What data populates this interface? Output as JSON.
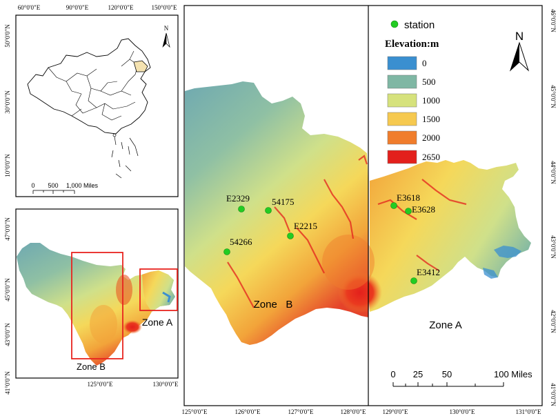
{
  "colors": {
    "elev_0": "#3a8fd0",
    "elev_500": "#7fb7a4",
    "elev_1000": "#d6e27c",
    "elev_1500": "#f6c94f",
    "elev_2000": "#f07d2c",
    "elev_2650": "#e3201c",
    "station": "#22cc22",
    "zone_box": "#e8231e",
    "china_highlight": "#f4e2b0"
  },
  "inset_china": {
    "top_ticks": [
      "60°0'0\"E",
      "90°0'0\"E",
      "120°0'0\"E",
      "150°0'0\"E"
    ],
    "left_ticks": [
      "50°0'0\"N",
      "30°0'0\"N",
      "10°0'0\"N"
    ],
    "north_letter": "N",
    "scale_labels": [
      "0",
      "500",
      "1,000 Miles"
    ]
  },
  "inset_region": {
    "left_ticks": [
      "47°0'0\"N",
      "45°0'0\"N",
      "43°0'0\"N",
      "41°0'0\"N"
    ],
    "bottom_ticks": [
      "125°0'0\"E",
      "130°0'0\"E"
    ],
    "zone_a_label": "Zone A",
    "zone_b_label": "Zone B"
  },
  "main_map": {
    "bottom_ticks": [
      "125°0'0\"E",
      "126°0'0\"E",
      "127°0'0\"E",
      "128°0'0\"E",
      "129°0'0\"E",
      "130°0'0\"E",
      "131°0'0\"E"
    ],
    "right_ticks": [
      "46°0'0\"N",
      "45°0'0\"N",
      "44°0'0\"N",
      "43°0'0\"N",
      "42°0'0\"N",
      "41°0'0\"N"
    ],
    "zone_a_label": "Zone A",
    "zone_b_label": "Zone   B",
    "north_letter": "N",
    "scale_labels": [
      "0",
      "25",
      "50",
      "100 Miles"
    ],
    "stations": [
      "E2329",
      "54175",
      "E2215",
      "54266",
      "E3618",
      "E3628",
      "E3412"
    ]
  },
  "legend": {
    "station_label": "station",
    "elevation_title": "Elevation:m",
    "classes": [
      "0",
      "500",
      "1000",
      "1500",
      "2000",
      "2650"
    ]
  }
}
